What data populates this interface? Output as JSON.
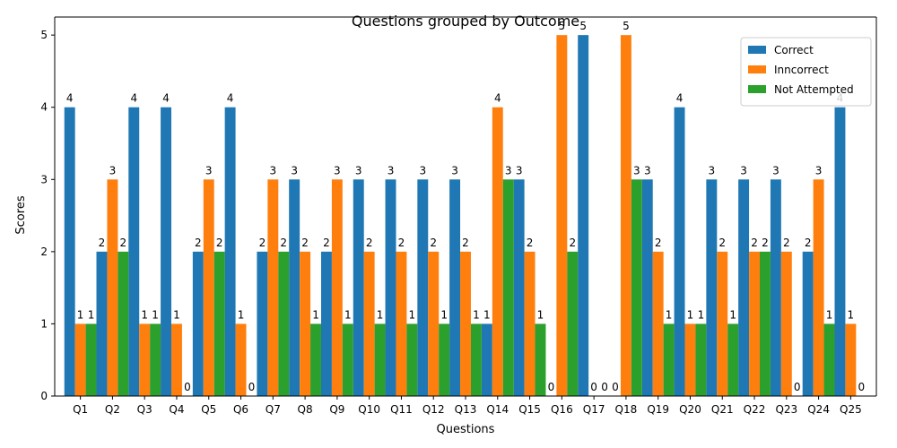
{
  "chart_data": {
    "type": "bar",
    "title": "Questions grouped by Outcome",
    "xlabel": "Questions",
    "ylabel": "Scores",
    "ylim": [
      0,
      5.25
    ],
    "yticks": [
      0,
      1,
      2,
      3,
      4,
      5
    ],
    "legend_position": "top-right",
    "grid": false,
    "categories": [
      "Q1",
      "Q2",
      "Q3",
      "Q4",
      "Q5",
      "Q6",
      "Q7",
      "Q8",
      "Q9",
      "Q10",
      "Q11",
      "Q12",
      "Q13",
      "Q14",
      "Q15",
      "Q16",
      "Q17",
      "Q18",
      "Q19",
      "Q20",
      "Q21",
      "Q22",
      "Q23",
      "Q24",
      "Q25"
    ],
    "series": [
      {
        "name": "Correct",
        "color": "#1f77b4",
        "values": [
          4,
          2,
          4,
          4,
          2,
          4,
          2,
          3,
          2,
          3,
          3,
          3,
          3,
          1,
          3,
          0,
          5,
          0,
          3,
          4,
          3,
          3,
          3,
          2,
          4
        ]
      },
      {
        "name": "Inncorrect",
        "color": "#ff7f0e",
        "values": [
          1,
          3,
          1,
          1,
          3,
          1,
          3,
          2,
          3,
          2,
          2,
          2,
          2,
          4,
          2,
          5,
          0,
          5,
          2,
          1,
          2,
          2,
          2,
          3,
          1
        ]
      },
      {
        "name": "Not Attempted",
        "color": "#2ca02c",
        "values": [
          1,
          2,
          1,
          0,
          2,
          0,
          2,
          1,
          1,
          1,
          1,
          1,
          1,
          3,
          1,
          2,
          0,
          3,
          1,
          1,
          1,
          2,
          0,
          1,
          0
        ]
      }
    ]
  }
}
